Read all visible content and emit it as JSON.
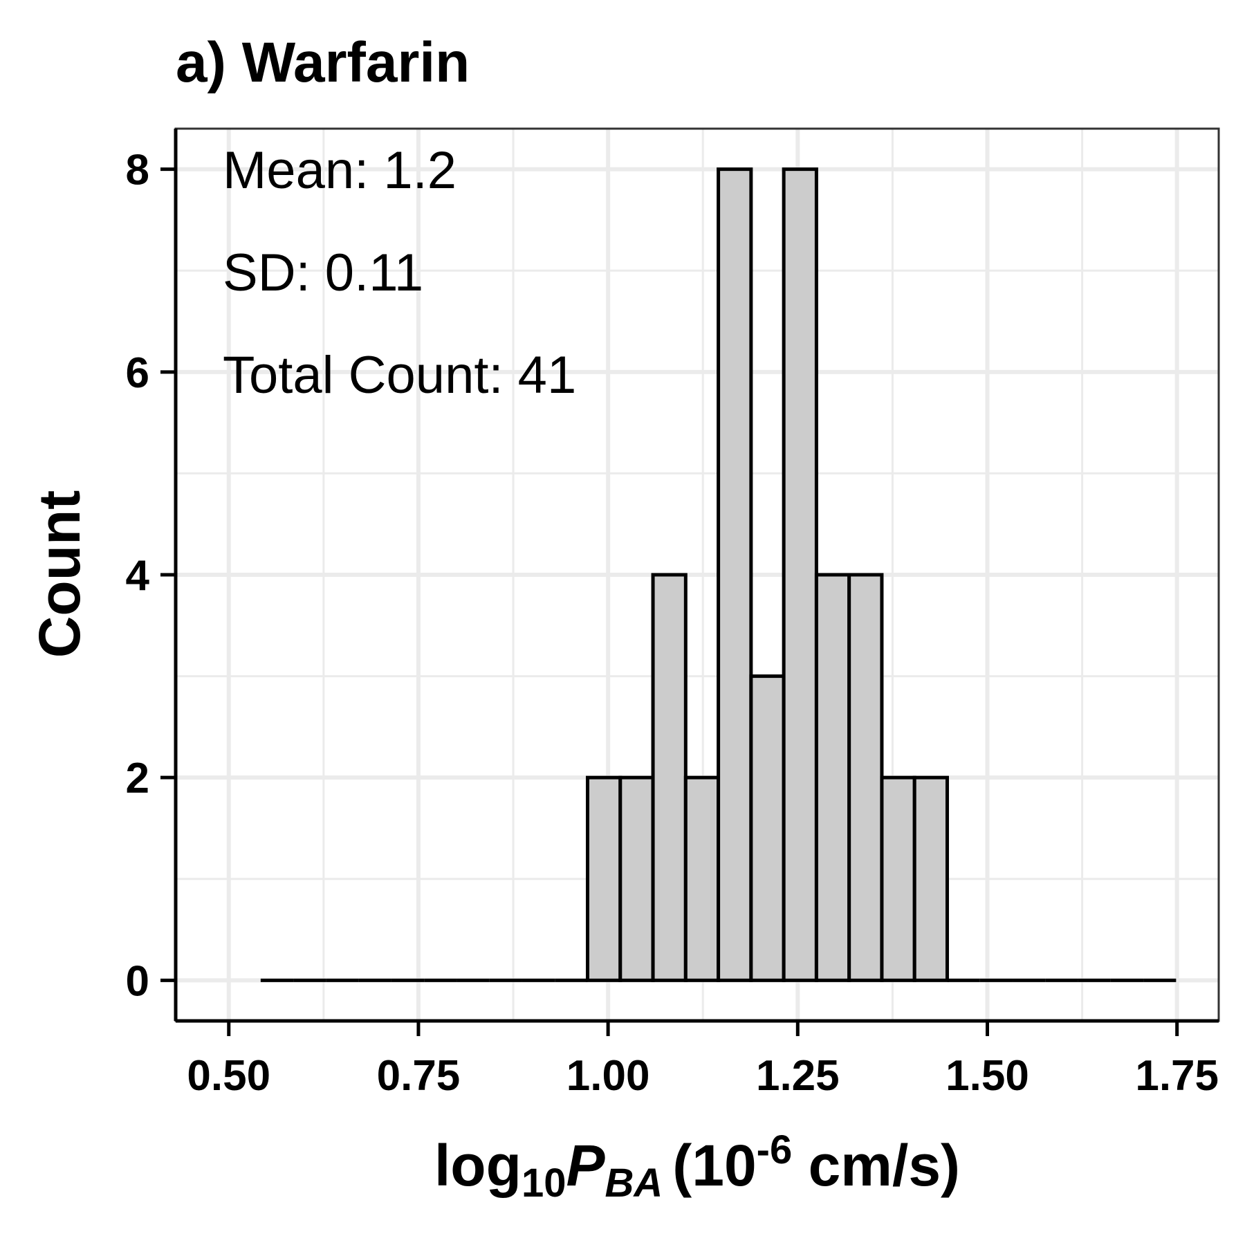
{
  "chart_data": {
    "type": "bar",
    "subtype": "histogram",
    "title": "a) Warfarin",
    "xlabel": {
      "base": "log",
      "base_sub": "10",
      "symbol": "P",
      "symbol_sub": "BA",
      "unit_open": "(10",
      "unit_exp": "-6",
      "unit_close": " cm/s)"
    },
    "ylabel": "Count",
    "xlim": [
      0.43,
      1.805
    ],
    "ylim": [
      -0.4,
      8.4
    ],
    "x_ticks": [
      0.5,
      0.75,
      1.0,
      1.25,
      1.5,
      1.75
    ],
    "x_tick_labels": [
      "0.50",
      "0.75",
      "1.00",
      "1.25",
      "1.50",
      "1.75"
    ],
    "y_ticks": [
      0,
      2,
      4,
      6,
      8
    ],
    "y_tick_labels": [
      "0",
      "2",
      "4",
      "6",
      "8"
    ],
    "grid": true,
    "bins": {
      "start": 0.542,
      "width": 0.0431,
      "counts": [
        0,
        0,
        0,
        0,
        0,
        0,
        0,
        0,
        0,
        0,
        2,
        2,
        4,
        2,
        8,
        3,
        8,
        4,
        4,
        2,
        2,
        0,
        0,
        0,
        0,
        0,
        0,
        0
      ]
    },
    "fill_color": "#cccccc",
    "edge_color": "#000000",
    "annotations": [
      "Mean: 1.2",
      "SD: 0.11",
      "Total Count: 41"
    ]
  }
}
